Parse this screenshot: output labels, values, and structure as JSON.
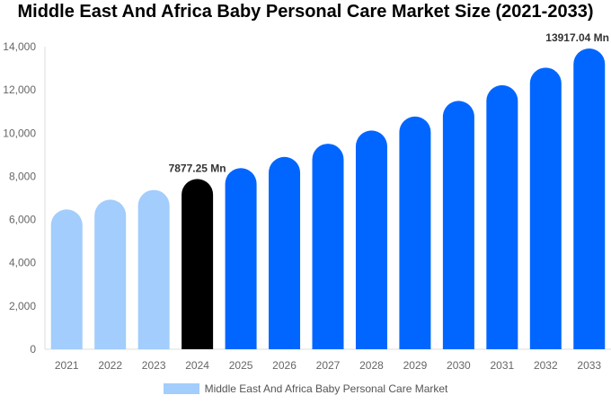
{
  "chart_data": {
    "type": "bar",
    "title": "Middle East And Africa Baby Personal Care Market Size (2021-2033)",
    "categories": [
      "2021",
      "2022",
      "2023",
      "2024",
      "2025",
      "2026",
      "2027",
      "2028",
      "2029",
      "2030",
      "2031",
      "2032",
      "2033"
    ],
    "series": [
      {
        "name": "Middle East And Africa Baby Personal Care Market",
        "values": [
          6470,
          6920,
          7370,
          7877.25,
          8380,
          8900,
          9510,
          10120,
          10770,
          11490,
          12220,
          13030,
          13917.04
        ]
      }
    ],
    "data_labels": [
      {
        "category": "2024",
        "text": "7877.25 Mn"
      },
      {
        "category": "2033",
        "text": "13917.04 Mn"
      }
    ],
    "ylim": [
      0,
      14000
    ],
    "yticks": [
      0,
      2000,
      4000,
      6000,
      8000,
      10000,
      12000,
      14000
    ],
    "ytick_labels": [
      "0",
      "2,000",
      "4,000",
      "6,000",
      "8,000",
      "10,000",
      "12,000",
      "14,000"
    ],
    "grid": false,
    "legend": "bottom",
    "colors": {
      "historical": "#a2cdfc",
      "base_year": "#000000",
      "forecast": "#0066ff"
    }
  }
}
